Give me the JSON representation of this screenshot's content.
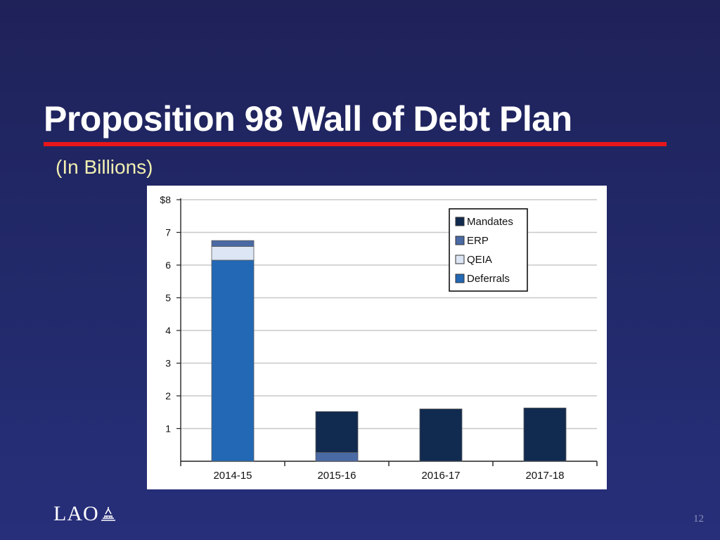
{
  "slide": {
    "title": "Proposition 98 Wall of Debt Plan",
    "subtitle": "(In Billions)",
    "logo_text": "LAO",
    "page_number": "12"
  },
  "colors": {
    "background": "#222a6b",
    "title_rule": "#e8161b",
    "title_text": "#ffffff",
    "subtitle_text": "#f1efb0"
  },
  "chart_data": {
    "type": "bar",
    "stacked": true,
    "categories": [
      "2014-15",
      "2015-16",
      "2016-17",
      "2017-18"
    ],
    "series": [
      {
        "name": "Deferrals",
        "color": "#2368b5",
        "values": [
          6.15,
          0,
          0,
          0
        ]
      },
      {
        "name": "QEIA",
        "color": "#dce6f4",
        "values": [
          0.42,
          0,
          0,
          0
        ]
      },
      {
        "name": "ERP",
        "color": "#4a6aa5",
        "values": [
          0.18,
          0.27,
          0,
          0
        ]
      },
      {
        "name": "Mandates",
        "color": "#112a4f",
        "values": [
          0,
          1.25,
          1.6,
          1.63
        ]
      }
    ],
    "legend_order": [
      "Mandates",
      "ERP",
      "QEIA",
      "Deferrals"
    ],
    "ylim": [
      0,
      8
    ],
    "yticks": [
      {
        "value": 1,
        "label": "1"
      },
      {
        "value": 2,
        "label": "2"
      },
      {
        "value": 3,
        "label": "3"
      },
      {
        "value": 4,
        "label": "4"
      },
      {
        "value": 5,
        "label": "5"
      },
      {
        "value": 6,
        "label": "6"
      },
      {
        "value": 7,
        "label": "7"
      },
      {
        "value": 8,
        "label": "$8"
      }
    ],
    "grid": true,
    "legend_position": "top-right"
  }
}
